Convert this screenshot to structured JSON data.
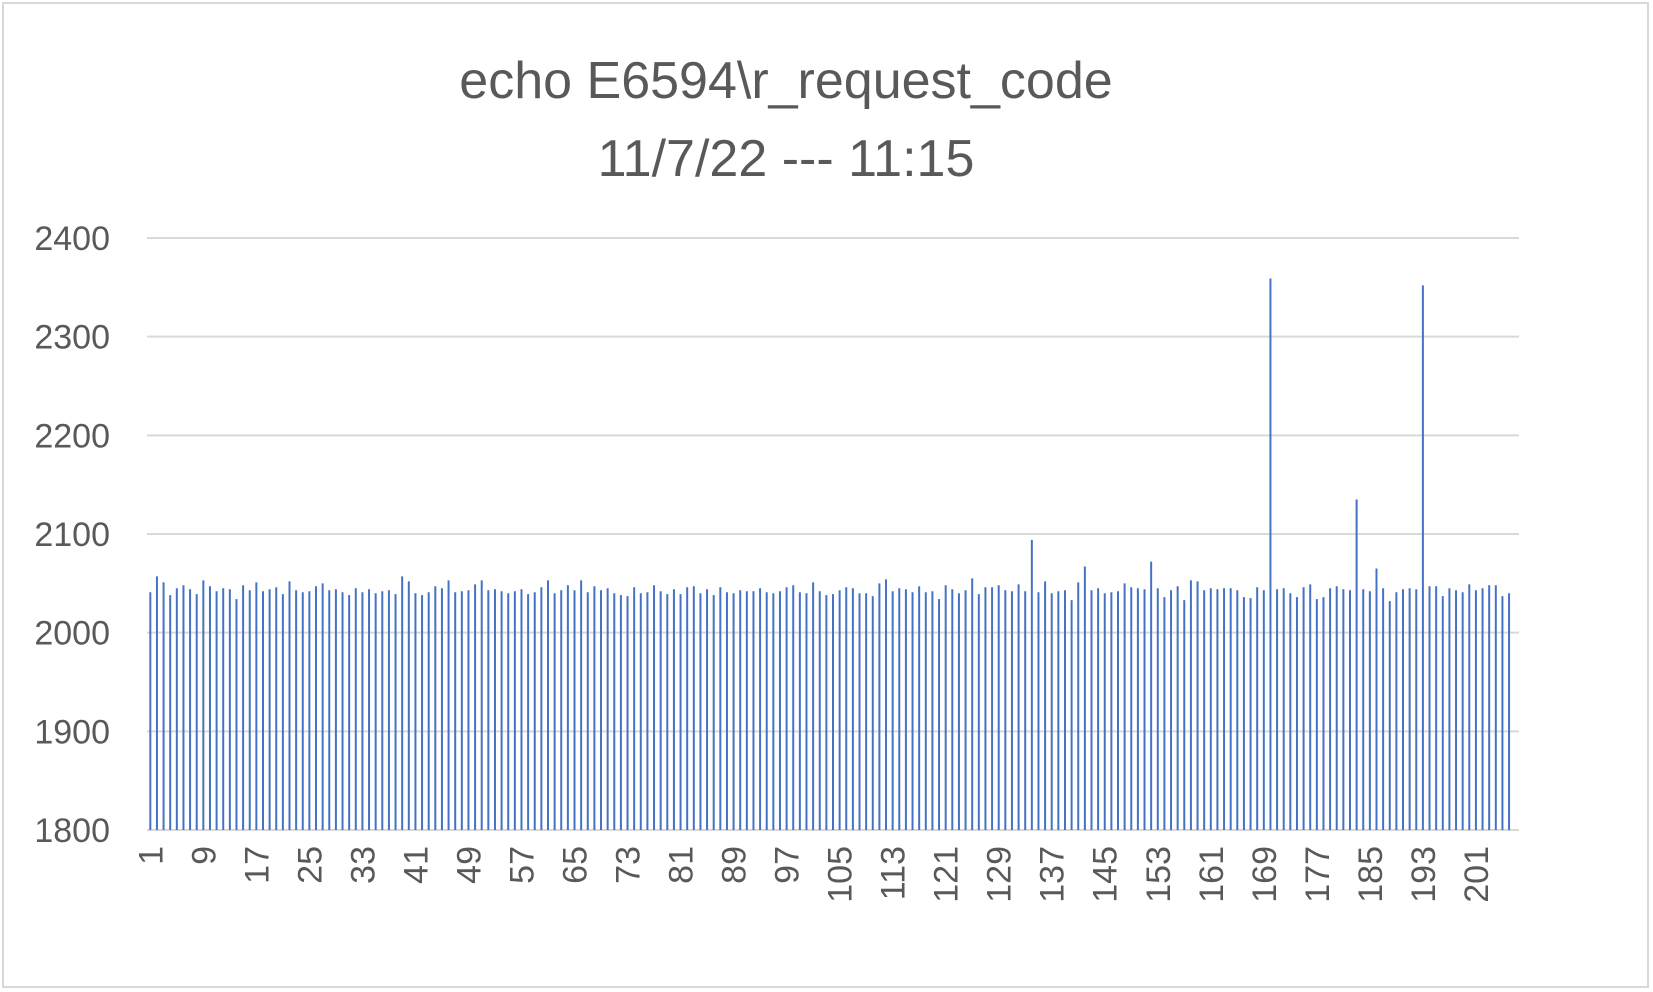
{
  "chart_data": {
    "type": "bar",
    "title": [
      "echo E6594\\r_request_code",
      "11/7/22 --- 11:15"
    ],
    "xlabel": "",
    "ylabel": "",
    "ylim": [
      1800,
      2400
    ],
    "yticks": [
      "1800",
      "1900",
      "2000",
      "2100",
      "2200",
      "2300",
      "2400"
    ],
    "x_range": [
      1,
      207
    ],
    "xticks": [
      "1",
      "9",
      "17",
      "25",
      "33",
      "41",
      "49",
      "57",
      "65",
      "73",
      "81",
      "89",
      "97",
      "105",
      "113",
      "121",
      "129",
      "137",
      "145",
      "153",
      "161",
      "169",
      "177",
      "185",
      "193",
      "201"
    ],
    "grid": true,
    "legend": "none",
    "colors": {
      "bar": "#4472c4",
      "grid": "#d9d9d9",
      "text": "#595959",
      "border": "#d9d9d9"
    },
    "series": [
      {
        "values": [
          2041,
          2057,
          2051,
          2038,
          2045,
          2048,
          2044,
          2039,
          2053,
          2047,
          2042,
          2045,
          2044,
          2034,
          2048,
          2043,
          2051,
          2042,
          2044,
          2046,
          2039,
          2052,
          2043,
          2041,
          2042,
          2047,
          2050,
          2043,
          2044,
          2041,
          2038,
          2045,
          2041,
          2044,
          2040,
          2042,
          2043,
          2039,
          2057,
          2052,
          2040,
          2038,
          2041,
          2047,
          2045,
          2053,
          2041,
          2042,
          2043,
          2049,
          2053,
          2043,
          2044,
          2042,
          2040,
          2042,
          2044,
          2039,
          2041,
          2046,
          2053,
          2040,
          2043,
          2048,
          2043,
          2053,
          2041,
          2047,
          2043,
          2045,
          2040,
          2038,
          2037,
          2046,
          2040,
          2041,
          2048,
          2042,
          2039,
          2044,
          2039,
          2046,
          2047,
          2040,
          2044,
          2038,
          2046,
          2041,
          2040,
          2043,
          2042,
          2042,
          2045,
          2041,
          2040,
          2042,
          2046,
          2048,
          2041,
          2040,
          2051,
          2042,
          2038,
          2039,
          2043,
          2046,
          2045,
          2040,
          2040,
          2037,
          2050,
          2054,
          2042,
          2045,
          2044,
          2041,
          2047,
          2041,
          2042,
          2034,
          2048,
          2044,
          2040,
          2043,
          2055,
          2039,
          2046,
          2046,
          2048,
          2043,
          2042,
          2049,
          2042,
          2094,
          2041,
          2052,
          2040,
          2042,
          2043,
          2033,
          2051,
          2067,
          2043,
          2045,
          2040,
          2041,
          2042,
          2050,
          2046,
          2045,
          2044,
          2072,
          2045,
          2036,
          2043,
          2047,
          2033,
          2053,
          2052,
          2043,
          2045,
          2044,
          2045,
          2045,
          2043,
          2036,
          2035,
          2046,
          2043,
          2359,
          2044,
          2045,
          2040,
          2036,
          2046,
          2049,
          2034,
          2036,
          2045,
          2047,
          2044,
          2043,
          2135,
          2044,
          2042,
          2065,
          2045,
          2032,
          2041,
          2044,
          2045,
          2044,
          2352,
          2047,
          2047,
          2037,
          2045,
          2043,
          2041,
          2049,
          2043,
          2045,
          2048,
          2048,
          2037,
          2040
        ]
      }
    ]
  }
}
